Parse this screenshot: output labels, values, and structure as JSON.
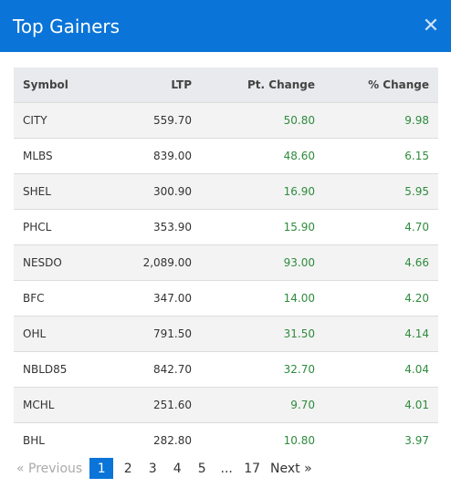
{
  "modal": {
    "title": "Top Gainers",
    "close_icon": "close-icon"
  },
  "table": {
    "headers": [
      "Symbol",
      "LTP",
      "Pt. Change",
      "% Change"
    ],
    "rows": [
      {
        "symbol": "CITY",
        "ltp": "559.70",
        "pt_change": "50.80",
        "pct_change": "9.98"
      },
      {
        "symbol": "MLBS",
        "ltp": "839.00",
        "pt_change": "48.60",
        "pct_change": "6.15"
      },
      {
        "symbol": "SHEL",
        "ltp": "300.90",
        "pt_change": "16.90",
        "pct_change": "5.95"
      },
      {
        "symbol": "PHCL",
        "ltp": "353.90",
        "pt_change": "15.90",
        "pct_change": "4.70"
      },
      {
        "symbol": "NESDO",
        "ltp": "2,089.00",
        "pt_change": "93.00",
        "pct_change": "4.66"
      },
      {
        "symbol": "BFC",
        "ltp": "347.00",
        "pt_change": "14.00",
        "pct_change": "4.20"
      },
      {
        "symbol": "OHL",
        "ltp": "791.50",
        "pt_change": "31.50",
        "pct_change": "4.14"
      },
      {
        "symbol": "NBLD85",
        "ltp": "842.70",
        "pt_change": "32.70",
        "pct_change": "4.04"
      },
      {
        "symbol": "MCHL",
        "ltp": "251.60",
        "pt_change": "9.70",
        "pct_change": "4.01"
      },
      {
        "symbol": "BHL",
        "ltp": "282.80",
        "pt_change": "10.80",
        "pct_change": "3.97"
      }
    ]
  },
  "pagination": {
    "previous": "« Previous",
    "pages": [
      "1",
      "2",
      "3",
      "4",
      "5"
    ],
    "ellipsis": "...",
    "last": "17",
    "next": "Next »",
    "current": "1"
  },
  "colors": {
    "header_bg": "#0a74d8",
    "gain": "#2e8b3d",
    "active_page": "#0a74d8"
  }
}
